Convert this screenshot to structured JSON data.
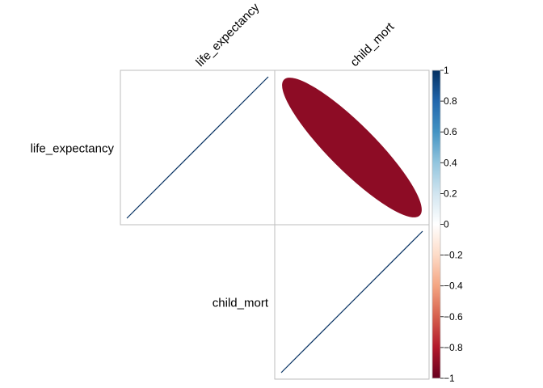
{
  "chart_data": {
    "type": "heatmap",
    "variables": [
      "life_expectancy",
      "child_mort"
    ],
    "row_labels": [
      "life_expectancy",
      "child_mort"
    ],
    "col_labels": [
      "life_expectancy",
      "child_mort"
    ],
    "method": "ellipse",
    "layout": "upper triangle",
    "cells": [
      {
        "row": "life_expectancy",
        "col": "life_expectancy",
        "value": 1.0
      },
      {
        "row": "life_expectancy",
        "col": "child_mort",
        "value": -0.9
      },
      {
        "row": "child_mort",
        "col": "child_mort",
        "value": 1.0
      }
    ],
    "colorbar": {
      "ticks": [
        "1",
        "0.8",
        "0.6",
        "0.4",
        "0.2",
        "0",
        "−0.2",
        "−0.4",
        "−0.6",
        "−0.8",
        "−1"
      ],
      "range": [
        -1,
        1
      ],
      "colors": [
        "#67001F",
        "#B2182B",
        "#D6604D",
        "#F4A582",
        "#FDDBC7",
        "#FFFFFF",
        "#D1E5F0",
        "#92C5DE",
        "#4393C3",
        "#2166AC",
        "#053061"
      ]
    },
    "grid": true,
    "legend": "right"
  }
}
